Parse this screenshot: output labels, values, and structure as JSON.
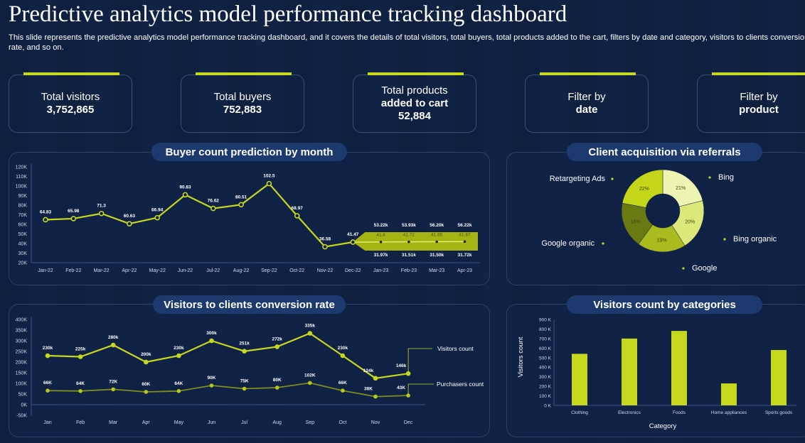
{
  "header": {
    "title": "Predictive analytics model performance tracking dashboard",
    "subtitle": "This slide represents the predictive analytics model performance tracking dashboard, and it covers the details of total visitors, total buyers, total products added to the cart, filters by date and category, visitors to clients conversion rate, and so on."
  },
  "kpis": [
    {
      "label": "Total visitors",
      "value": "3,752,865"
    },
    {
      "label": "Total buyers",
      "value": "752,883"
    },
    {
      "label": "Total products",
      "label2": "added to cart",
      "value": "52,884"
    },
    {
      "label": "Filter by",
      "value": "date"
    },
    {
      "label": "Filter by",
      "value": "product"
    }
  ],
  "colors": {
    "accent": "#c6d81e",
    "background": "#0f1f40",
    "pill": "#1d3a6e"
  },
  "chart_data": [
    {
      "type": "line",
      "title": "Buyer count prediction by month",
      "categories": [
        "Jan-22",
        "Feb-22",
        "Mar-22",
        "Apr-22",
        "May-22",
        "Jun-22",
        "Jul-22",
        "Aug-22",
        "Sep-22",
        "Oct-22",
        "Nov-22",
        "Dec-22",
        "Jan-23",
        "Feb-23",
        "Mar-23",
        "Apr-23"
      ],
      "values": [
        64.83,
        65.98,
        71.3,
        60.63,
        66.94,
        90.83,
        76.62,
        80.51,
        102.5,
        68.97,
        36.58,
        41.47,
        41.6,
        41.72,
        41.85,
        41.97
      ],
      "value_labels": [
        "64.83",
        "65.98",
        "71.3",
        "60.63",
        "66.94",
        "90.83",
        "76.62",
        "80.51",
        "102.5",
        "68.97",
        "36.58",
        "41.47",
        "41.6",
        "41.72",
        "41.85",
        "41.97"
      ],
      "forecast_upper": [
        "53.22k",
        "53.93k",
        "56.20k",
        "56.22k"
      ],
      "forecast_lower": [
        "31.97k",
        "31.51k",
        "31.50k",
        "31.72k"
      ],
      "forecast_upper_values": [
        53.22,
        53.93,
        56.2,
        56.22
      ],
      "forecast_lower_values": [
        31.97,
        31.51,
        31.5,
        31.72
      ],
      "yticks": [
        "120K",
        "110K",
        "100K",
        "90K",
        "80K",
        "70K",
        "60K",
        "50K",
        "40K",
        "30K",
        "20K"
      ],
      "ylim": [
        20,
        120
      ]
    },
    {
      "type": "pie",
      "title": "Client acquisition via referrals",
      "labels": [
        "Bing",
        "Bing organic",
        "Google",
        "Google organic",
        "Retargeting Ads"
      ],
      "values": [
        21,
        20,
        19,
        18,
        22
      ],
      "value_labels": [
        "21%",
        "20%",
        "19%",
        "18%",
        "22%"
      ],
      "colors": [
        "#eef5b2",
        "#dce97a",
        "#a9bb1e",
        "#6a7a12",
        "#c4d61a"
      ]
    },
    {
      "type": "line",
      "title": "Visitors to clients conversion rate",
      "categories": [
        "Jan",
        "Feb",
        "Mar",
        "Apr",
        "May",
        "Jun",
        "Jul",
        "Aug",
        "Sep",
        "Oct",
        "Nov",
        "Dec"
      ],
      "series": [
        {
          "name": "Visitors count",
          "values": [
            230,
            225,
            280,
            200,
            230,
            300,
            251,
            272,
            335,
            230,
            124,
            146
          ],
          "labels": [
            "230k",
            "225k",
            "280k",
            "200k",
            "230k",
            "300k",
            "251k",
            "272k",
            "335k",
            "230k",
            "124k",
            "146k"
          ]
        },
        {
          "name": "Purchasers count",
          "values": [
            66,
            64,
            72,
            60,
            64,
            90,
            75,
            80,
            102,
            66,
            38,
            43
          ],
          "labels": [
            "66K",
            "64K",
            "72K",
            "60K",
            "64K",
            "90K",
            "75K",
            "80K",
            "102K",
            "66K",
            "38K",
            "43K"
          ]
        }
      ],
      "yticks": [
        "400K",
        "350K",
        "300K",
        "250K",
        "200K",
        "150K",
        "100K",
        "50K",
        "0K",
        "-50K"
      ],
      "ylim": [
        -50,
        400
      ]
    },
    {
      "type": "bar",
      "title": "Visitors count by categories",
      "categories": [
        "Clothing",
        "Electronics",
        "Foods",
        "Home appliances",
        "Sports goods"
      ],
      "values": [
        540,
        700,
        780,
        230,
        580
      ],
      "xlabel": "Category",
      "ylabel": "Visitors count",
      "yticks": [
        "900 K",
        "800 K",
        "700 K",
        "600 K",
        "500 K",
        "400 K",
        "300 K",
        "200 K",
        "100 K",
        "0 K"
      ],
      "ylim": [
        0,
        900
      ]
    }
  ]
}
